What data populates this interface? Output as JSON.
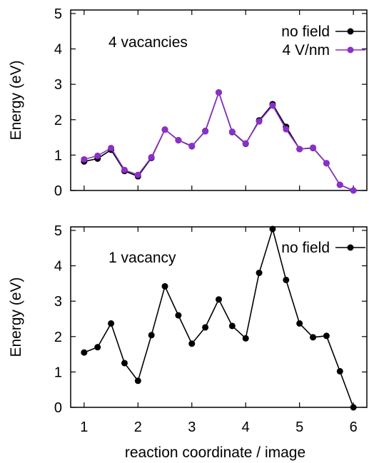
{
  "chart_data": [
    {
      "type": "line",
      "annotation": "4 vacancies",
      "xlabel": "",
      "ylabel": "Energy (eV)",
      "xlim": [
        0.75,
        6.25
      ],
      "ylim": [
        0,
        5.1
      ],
      "yticks": [
        "0",
        "1",
        "2",
        "3",
        "4",
        "5"
      ],
      "legend_position": "top-right",
      "series": [
        {
          "name": "no field",
          "color": "#000000",
          "x": [
            1,
            1.25,
            1.5,
            1.75,
            2,
            2.25,
            2.5,
            2.75,
            3,
            3.25,
            3.5,
            3.75,
            4,
            4.25,
            4.5,
            4.75,
            5,
            5.25,
            5.5,
            5.75,
            6
          ],
          "y": [
            0.82,
            0.9,
            1.15,
            0.55,
            0.4,
            0.92,
            1.72,
            1.42,
            1.25,
            1.68,
            2.77,
            1.65,
            1.32,
            1.98,
            2.44,
            1.8,
            1.17,
            1.2,
            0.77,
            0.16,
            0.0
          ]
        },
        {
          "name": "4 V/nm",
          "color": "#8b2fc9",
          "x": [
            1,
            1.25,
            1.5,
            1.75,
            2,
            2.25,
            2.5,
            2.75,
            3,
            3.25,
            3.5,
            3.75,
            4,
            4.25,
            4.5,
            4.75,
            5,
            5.25,
            5.5,
            5.75,
            6
          ],
          "y": [
            0.88,
            0.98,
            1.2,
            0.58,
            0.44,
            0.94,
            1.72,
            1.42,
            1.26,
            1.67,
            2.77,
            1.66,
            1.33,
            1.95,
            2.4,
            1.73,
            1.17,
            1.21,
            0.77,
            0.16,
            0.0
          ]
        }
      ]
    },
    {
      "type": "line",
      "annotation": "1 vacancy",
      "xlabel": "reaction coordinate / image",
      "ylabel": "Energy (eV)",
      "xlim": [
        0.75,
        6.25
      ],
      "ylim": [
        0,
        5.1
      ],
      "xticks": [
        "1",
        "2",
        "3",
        "4",
        "5",
        "6"
      ],
      "yticks": [
        "0",
        "1",
        "2",
        "3",
        "4",
        "5"
      ],
      "legend_position": "top-right",
      "series": [
        {
          "name": "no field",
          "color": "#000000",
          "x": [
            1,
            1.25,
            1.5,
            1.75,
            2,
            2.25,
            2.5,
            2.75,
            3,
            3.25,
            3.5,
            3.75,
            4,
            4.25,
            4.5,
            4.75,
            5,
            5.25,
            5.5,
            5.75,
            6
          ],
          "y": [
            1.55,
            1.7,
            2.37,
            1.25,
            0.75,
            2.04,
            3.42,
            2.6,
            1.8,
            2.26,
            3.05,
            2.3,
            1.95,
            3.8,
            5.04,
            3.6,
            2.37,
            1.98,
            2.02,
            1.02,
            0.0
          ]
        }
      ]
    }
  ]
}
